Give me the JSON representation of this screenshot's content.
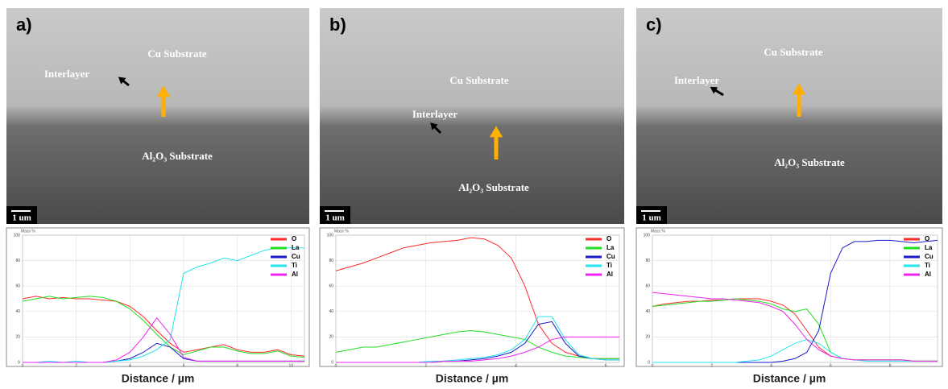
{
  "panels": [
    {
      "label": "a)",
      "annotations": [
        "Cu Substrate",
        "Interlayer",
        "Al₂O₃ Substrate"
      ],
      "scale_bar": "1 um"
    },
    {
      "label": "b)",
      "annotations": [
        "Cu Substrate",
        "Interlayer",
        "Al₂O₃ Substrate"
      ],
      "scale_bar": "1 um"
    },
    {
      "label": "c)",
      "annotations": [
        "Cu Substrate",
        "Interlayer",
        "Al₂O₃ Substrate"
      ],
      "scale_bar": "1 um"
    }
  ],
  "chart_data": [
    {
      "type": "line",
      "ylabel": "Mass %",
      "xlabel": "Distance / µm",
      "xlim": [
        0,
        10.5
      ],
      "ylim": [
        0,
        100
      ],
      "xticks": [
        0,
        2,
        4,
        6,
        8,
        10
      ],
      "yticks": [
        0,
        20,
        40,
        60,
        80,
        100
      ],
      "grid": true,
      "legend": "top-right",
      "x": [
        0,
        0.5,
        1,
        1.5,
        2,
        2.5,
        3,
        3.5,
        4,
        4.5,
        5,
        5.5,
        6,
        6.5,
        7,
        7.5,
        8,
        8.5,
        9,
        9.5,
        10,
        10.5
      ],
      "series": [
        {
          "name": "O",
          "color": "#ff2a2a",
          "values": [
            50,
            52,
            50,
            51,
            50,
            50,
            49,
            48,
            44,
            36,
            25,
            15,
            8,
            10,
            12,
            14,
            10,
            8,
            8,
            10,
            6,
            5
          ]
        },
        {
          "name": "La",
          "color": "#22dd22",
          "values": [
            48,
            50,
            52,
            50,
            51,
            52,
            51,
            48,
            42,
            33,
            22,
            12,
            6,
            9,
            12,
            12,
            9,
            7,
            7,
            9,
            5,
            4
          ]
        },
        {
          "name": "Cu",
          "color": "#1a1acc",
          "values": [
            0,
            0,
            0,
            0,
            0,
            0,
            0,
            1,
            3,
            8,
            15,
            12,
            3,
            1,
            1,
            1,
            1,
            1,
            1,
            1,
            1,
            1
          ]
        },
        {
          "name": "Ti",
          "color": "#22e5ee",
          "values": [
            0,
            0,
            1,
            0,
            1,
            0,
            0,
            1,
            2,
            5,
            10,
            18,
            70,
            75,
            78,
            82,
            80,
            84,
            88,
            90,
            90,
            90
          ]
        },
        {
          "name": "Al",
          "color": "#ee22ee",
          "values": [
            0,
            0,
            0,
            0,
            0,
            0,
            0,
            2,
            8,
            20,
            35,
            22,
            4,
            1,
            1,
            1,
            1,
            1,
            1,
            1,
            1,
            1
          ]
        }
      ]
    },
    {
      "type": "line",
      "ylabel": "Mass %",
      "xlabel": "Distance / µm",
      "xlim": [
        0,
        6.3
      ],
      "ylim": [
        0,
        100
      ],
      "xticks": [
        0,
        2,
        4,
        6
      ],
      "yticks": [
        0,
        20,
        40,
        60,
        80,
        100
      ],
      "grid": true,
      "legend": "top-right",
      "x": [
        0,
        0.3,
        0.6,
        0.9,
        1.2,
        1.5,
        1.8,
        2.1,
        2.4,
        2.7,
        3,
        3.3,
        3.6,
        3.9,
        4.2,
        4.5,
        4.8,
        5.1,
        5.4,
        5.7,
        6,
        6.3
      ],
      "series": [
        {
          "name": "O",
          "color": "#ff2a2a",
          "values": [
            72,
            75,
            78,
            82,
            86,
            90,
            92,
            94,
            95,
            96,
            98,
            97,
            92,
            82,
            60,
            30,
            15,
            8,
            5,
            3,
            3,
            3
          ]
        },
        {
          "name": "La",
          "color": "#22dd22",
          "values": [
            8,
            10,
            12,
            12,
            14,
            16,
            18,
            20,
            22,
            24,
            25,
            24,
            22,
            20,
            18,
            12,
            8,
            5,
            4,
            3,
            3,
            3
          ]
        },
        {
          "name": "Cu",
          "color": "#1a1acc",
          "values": [
            0,
            0,
            0,
            0,
            0,
            0,
            0,
            0,
            1,
            1,
            2,
            3,
            5,
            8,
            15,
            30,
            32,
            15,
            5,
            3,
            2,
            2
          ]
        },
        {
          "name": "Ti",
          "color": "#22e5ee",
          "values": [
            0,
            0,
            0,
            0,
            0,
            0,
            0,
            1,
            1,
            2,
            3,
            4,
            6,
            10,
            18,
            36,
            36,
            18,
            6,
            3,
            2,
            2
          ]
        },
        {
          "name": "Al",
          "color": "#ee22ee",
          "values": [
            0,
            0,
            0,
            0,
            0,
            0,
            0,
            0,
            1,
            1,
            1,
            2,
            3,
            5,
            8,
            12,
            18,
            20,
            20,
            20,
            20,
            20
          ]
        }
      ]
    },
    {
      "type": "line",
      "ylabel": "Mass %",
      "xlabel": "Distance / µm",
      "xlim": [
        0,
        9.6
      ],
      "ylim": [
        0,
        100
      ],
      "xticks": [
        0,
        2,
        4,
        6,
        8
      ],
      "yticks": [
        0,
        20,
        40,
        60,
        80,
        100
      ],
      "grid": true,
      "legend": "top-right",
      "x": [
        0,
        0.4,
        0.8,
        1.2,
        1.6,
        2,
        2.4,
        2.8,
        3.2,
        3.6,
        4,
        4.4,
        4.8,
        5.2,
        5.6,
        6,
        6.4,
        6.8,
        7.2,
        7.6,
        8,
        8.4,
        8.8,
        9.2,
        9.6
      ],
      "series": [
        {
          "name": "O",
          "color": "#ff2a2a",
          "values": [
            44,
            46,
            47,
            48,
            48,
            49,
            49,
            50,
            50,
            50,
            48,
            45,
            38,
            25,
            12,
            5,
            3,
            2,
            2,
            2,
            2,
            2,
            1,
            1,
            1
          ]
        },
        {
          "name": "La",
          "color": "#22dd22",
          "values": [
            44,
            45,
            46,
            47,
            48,
            48,
            49,
            50,
            49,
            48,
            46,
            42,
            40,
            42,
            30,
            8,
            3,
            2,
            2,
            2,
            2,
            2,
            1,
            1,
            1
          ]
        },
        {
          "name": "Cu",
          "color": "#1a1acc",
          "values": [
            0,
            0,
            0,
            0,
            0,
            0,
            0,
            0,
            0,
            0,
            0,
            1,
            3,
            8,
            25,
            70,
            90,
            95,
            95,
            96,
            96,
            95,
            94,
            95,
            96
          ]
        },
        {
          "name": "Ti",
          "color": "#22e5ee",
          "values": [
            0,
            0,
            0,
            0,
            0,
            0,
            0,
            0,
            1,
            2,
            5,
            10,
            15,
            18,
            15,
            8,
            3,
            2,
            1,
            1,
            1,
            1,
            1,
            1,
            1
          ]
        },
        {
          "name": "Al",
          "color": "#ee22ee",
          "values": [
            55,
            54,
            53,
            52,
            51,
            50,
            50,
            49,
            48,
            47,
            44,
            40,
            30,
            18,
            10,
            5,
            3,
            2,
            2,
            2,
            2,
            2,
            1,
            1,
            1
          ]
        }
      ]
    }
  ]
}
